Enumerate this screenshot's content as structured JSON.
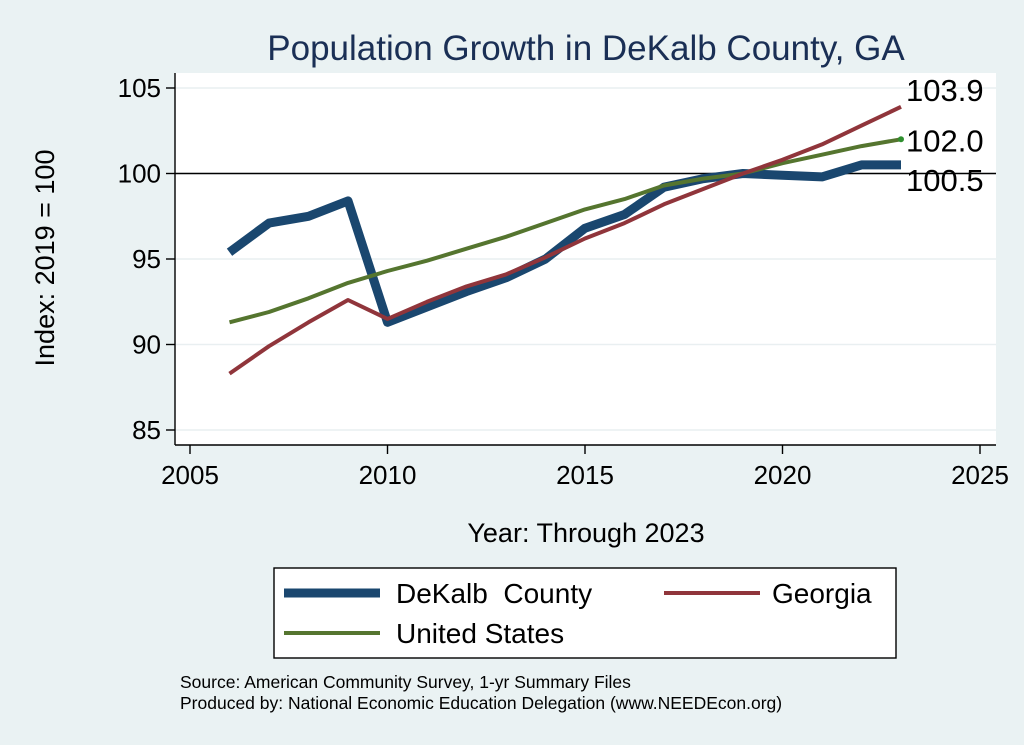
{
  "chart_data": {
    "type": "line",
    "title": "Population Growth in DeKalb County, GA",
    "xlabel": "Year: Through 2023",
    "ylabel": "Index: 2019 = 100",
    "xlim": [
      2005,
      2025
    ],
    "ylim": [
      85,
      105
    ],
    "xticks": [
      2005,
      2010,
      2015,
      2020,
      2025
    ],
    "yticks": [
      85,
      90,
      95,
      100,
      105
    ],
    "reference_line": 100,
    "x": [
      2006,
      2007,
      2008,
      2009,
      2010,
      2011,
      2012,
      2013,
      2014,
      2015,
      2016,
      2017,
      2018,
      2019,
      2020,
      2021,
      2022,
      2023
    ],
    "series": [
      {
        "name": "DeKalb  County",
        "color": "#1a476f",
        "width": 9,
        "values": [
          95.4,
          97.1,
          97.5,
          98.4,
          91.3,
          92.2,
          93.1,
          93.9,
          95.0,
          96.8,
          97.6,
          99.2,
          99.7,
          100.0,
          99.9,
          99.8,
          100.5,
          100.5
        ],
        "end_label": "100.5"
      },
      {
        "name": "Georgia",
        "color": "#90353b",
        "width": 4,
        "values": [
          88.3,
          89.9,
          91.3,
          92.6,
          91.5,
          92.5,
          93.4,
          94.1,
          95.1,
          96.2,
          97.1,
          98.2,
          99.1,
          100.0,
          100.8,
          101.7,
          102.8,
          103.9
        ],
        "end_label": "103.9"
      },
      {
        "name": "United States",
        "color": "#55752f",
        "width": 4,
        "values": [
          91.3,
          91.9,
          92.7,
          93.6,
          94.3,
          94.9,
          95.6,
          96.3,
          97.1,
          97.9,
          98.5,
          99.3,
          99.7,
          100.0,
          100.6,
          101.1,
          101.6,
          102.0
        ],
        "end_label": "102.0"
      }
    ],
    "legend_position": "bottom",
    "source_lines": [
      "Source: American Community Survey, 1-yr Summary Files",
      "Produced by: National Economic Education Delegation (www.NEEDEcon.org)"
    ]
  }
}
